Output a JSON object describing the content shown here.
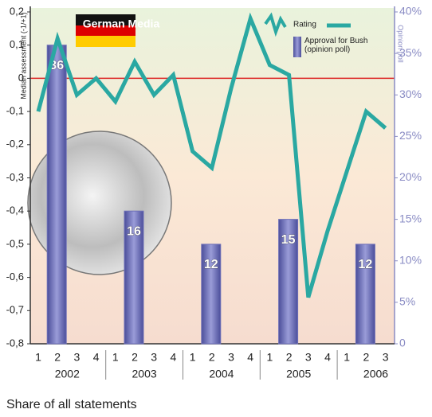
{
  "chart_data": {
    "type": "bar_line",
    "title": "German Media",
    "y_label": "Median assessment (-1/+1)",
    "y2_label": "Opinion poll",
    "footer": "Share of all statements",
    "categories": [
      "1",
      "2",
      "3",
      "4",
      "1",
      "2",
      "3",
      "4",
      "1",
      "2",
      "3",
      "4",
      "1",
      "2",
      "3",
      "4",
      "1",
      "2",
      "3"
    ],
    "years": [
      "2002",
      "2003",
      "2004",
      "2005",
      "2006"
    ],
    "ylim": [
      -0.8,
      0.2
    ],
    "yticks": [
      {
        "value": 0.2,
        "label": "0,2"
      },
      {
        "value": 0.1,
        "label": "0,1"
      },
      0,
      {
        "value": -0.1,
        "label": "-0,1"
      },
      {
        "value": -0.2,
        "label": "-0,2"
      },
      {
        "value": -0.3,
        "label": "-0,3"
      },
      {
        "value": -0.4,
        "label": "-0,4"
      },
      {
        "value": -0.5,
        "label": "-0,5"
      },
      {
        "value": -0.6,
        "label": "-0,6"
      },
      {
        "value": -0.7,
        "label": "-0,7"
      },
      {
        "value": -0.8,
        "label": "-0,8"
      }
    ],
    "y2lim": [
      0,
      40
    ],
    "y2ticks": [
      {
        "value": 40,
        "label": "40%"
      },
      {
        "value": 35,
        "label": "35%"
      },
      {
        "value": 30,
        "label": "30%"
      },
      {
        "value": 25,
        "label": "25%"
      },
      {
        "value": 20,
        "label": "20%"
      },
      {
        "value": 15,
        "label": "15%"
      },
      {
        "value": 10,
        "label": "10%"
      },
      {
        "value": 5,
        "label": "5%"
      },
      0
    ],
    "series": [
      {
        "name": "Rating",
        "type": "line",
        "color": "#2aa8a2",
        "values": [
          -0.1,
          0.12,
          -0.05,
          0.0,
          -0.07,
          0.05,
          -0.05,
          0.01,
          -0.22,
          -0.27,
          -0.03,
          0.18,
          0.04,
          0.01,
          -0.66,
          -0.46,
          -0.28,
          -0.1,
          -0.15
        ]
      },
      {
        "name": "Approval for Bush (opinion poll)",
        "type": "bar",
        "axis": "y2",
        "color": "#6e70b8",
        "values": [
          null,
          36,
          null,
          null,
          null,
          16,
          null,
          null,
          null,
          12,
          null,
          null,
          null,
          15,
          null,
          null,
          null,
          12,
          null
        ]
      }
    ]
  }
}
